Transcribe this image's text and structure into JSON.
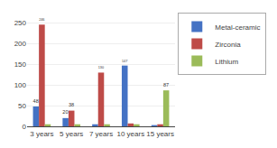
{
  "chart_data": {
    "type": "bar",
    "categories": [
      "3 years",
      "5 years",
      "7 years",
      "10 years",
      "15 years"
    ],
    "series": [
      {
        "name": "Metal-ceramic",
        "color": "#4472C4",
        "values": [
          48,
          20,
          5,
          147,
          3
        ],
        "value_labels": [
          "48",
          "20",
          null,
          "147",
          null
        ]
      },
      {
        "name": "Zirconia",
        "color": "#BE4B48",
        "values": [
          246,
          38,
          130,
          7,
          5
        ],
        "value_labels": [
          "246",
          "38",
          "130",
          null,
          null
        ]
      },
      {
        "name": "Lithium",
        "color": "#9BBB59",
        "values": [
          5,
          5,
          5,
          5,
          87
        ],
        "value_labels": [
          null,
          null,
          null,
          null,
          "87"
        ]
      }
    ],
    "ylim": [
      0,
      275
    ],
    "yticks": [
      0,
      50,
      100,
      150,
      200,
      250
    ],
    "grid": true,
    "legend": "upper right",
    "data_labels": true
  }
}
